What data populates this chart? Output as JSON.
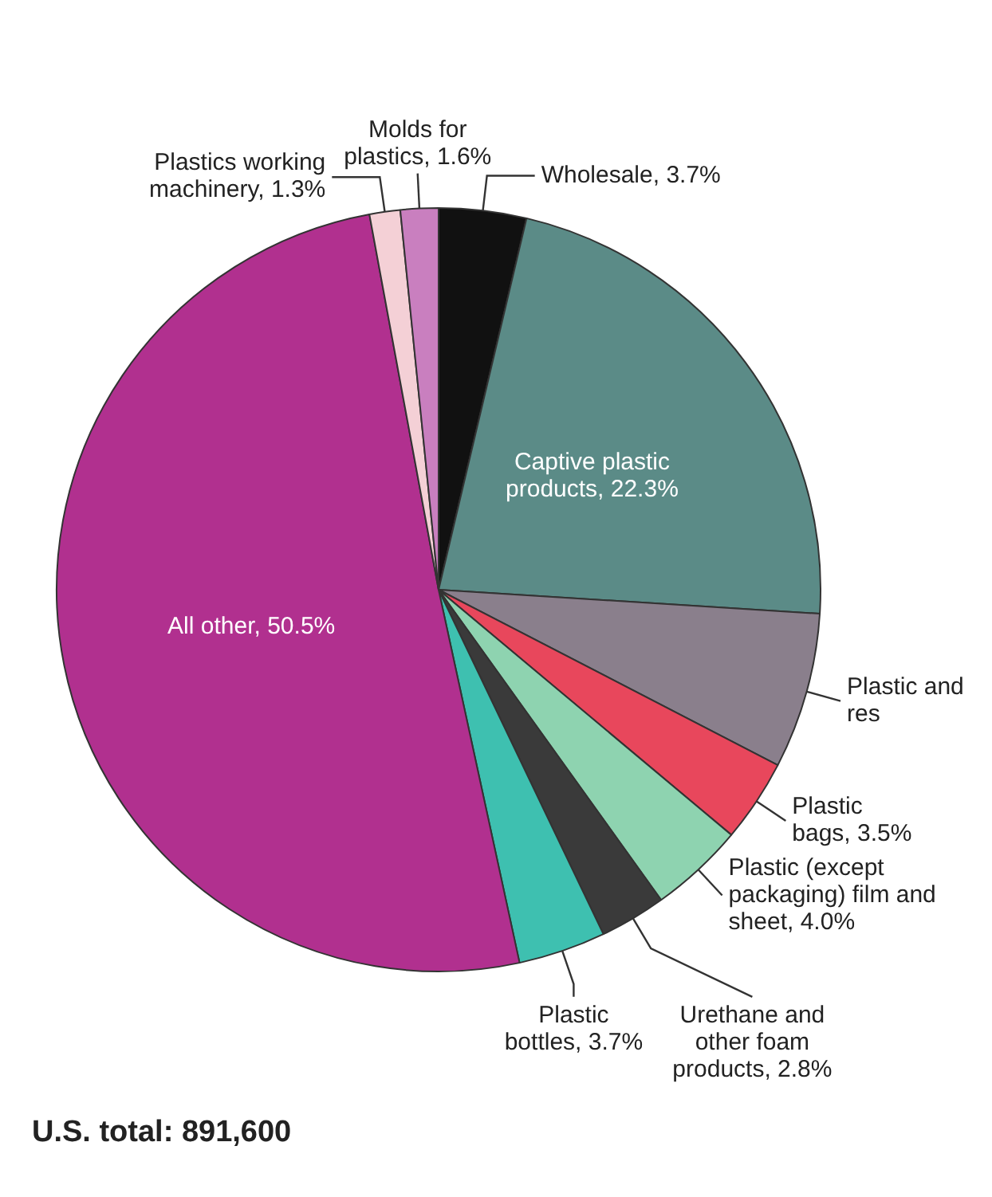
{
  "chart_data": {
    "type": "pie",
    "categories": [
      "Wholesale",
      "Captive plastic products",
      "Plastic and res",
      "Plastic bags",
      "Plastic (except packaging) film and sheet",
      "Urethane and other foam products",
      "Plastic bottles",
      "All other",
      "Plastics working machinery",
      "Molds for plastics"
    ],
    "values": [
      3.7,
      22.3,
      6.6,
      3.5,
      4.0,
      2.8,
      3.7,
      50.5,
      1.3,
      1.6
    ],
    "value_labels": [
      "3.7%",
      "22.3%",
      null,
      "3.5%",
      "4.0%",
      "2.8%",
      "3.7%",
      "50.5%",
      "1.3%",
      "1.6%"
    ],
    "colors": [
      "#111111",
      "#5b8b87",
      "#8a7f8c",
      "#e8475c",
      "#8ed3b0",
      "#3a3a3a",
      "#3ec0b0",
      "#b1308f",
      "#f4d0d6",
      "#c97fbf"
    ],
    "annotations": [
      "U.S. total: 891,600"
    ]
  }
}
